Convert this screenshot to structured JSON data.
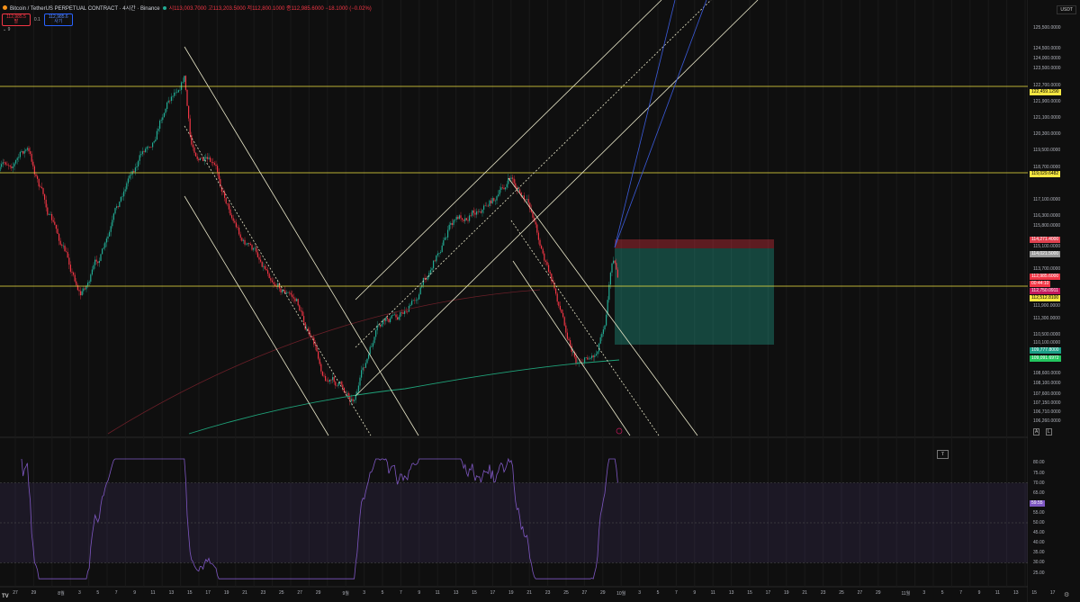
{
  "header": {
    "symbol": "Bitcoin / TetherUS PERPETUAL CONTRACT · 4시간 · Binance",
    "ohlc": "시113,003.7000 고113,203.5000 저112,800.1000 종112,985.6000 −18.1000 (−0.02%)",
    "sell_price": "112,985.5",
    "sell_label": "팔",
    "spread": "0.1",
    "buy_price": "112,985.6",
    "buy_label": "사기",
    "indicator_toggle": "⌄ 9"
  },
  "price_axis": {
    "currency": "USDT",
    "labels": [
      "125,500.0000",
      "124,500.0000",
      "124,000.0000",
      "123,500.0000",
      "122,700.0000",
      "121,900.0000",
      "121,100.0000",
      "120,300.0000",
      "119,500.0000",
      "118,700.0000",
      "117,100.0000",
      "116,300.0000",
      "115,800.0000",
      "115,100.0000",
      "113,700.0000",
      "111,900.0000",
      "111,300.0000",
      "110,500.0000",
      "110,100.0000",
      "108,600.0000",
      "108,100.0000",
      "107,600.0000",
      "107,150.0000",
      "106,710.0000",
      "106,260.0000"
    ],
    "tags": [
      {
        "text": "122,459.1290",
        "color": "#f5e642"
      },
      {
        "text": "119,029.6482",
        "color": "#f5e642"
      },
      {
        "text": "114,271.4000",
        "color": "#e0414f"
      },
      {
        "text": "114,021.5000",
        "color": "#9a9a9a"
      },
      {
        "text": "112,985.6000",
        "color": "#f23645"
      },
      {
        "text": "00:44:10",
        "color": "#f23645"
      },
      {
        "text": "112,750.0911",
        "color": "#c2185b"
      },
      {
        "text": "112,512.8100",
        "color": "#f5e642"
      },
      {
        "text": "109,777.8000",
        "color": "#1b9e86"
      },
      {
        "text": "109,091.6972",
        "color": "#22c55e"
      }
    ]
  },
  "rsi_axis": {
    "labels": [
      "80.00",
      "75.00",
      "70.00",
      "65.00",
      "55.00",
      "50.00",
      "45.00",
      "40.00",
      "35.00",
      "30.00",
      "25.00"
    ],
    "current": "59.55",
    "current_color": "#7e57c2"
  },
  "time_axis": {
    "labels": [
      {
        "t": "27",
        "d": "2025-07-27"
      },
      {
        "t": "29",
        "d": "2025-07-29"
      },
      {
        "t": "8월",
        "d": "2025-08-01"
      },
      {
        "t": "3",
        "d": "2025-08-03"
      },
      {
        "t": "5",
        "d": "2025-08-05"
      },
      {
        "t": "7",
        "d": "2025-08-07"
      },
      {
        "t": "9",
        "d": "2025-08-09"
      },
      {
        "t": "11",
        "d": "2025-08-11"
      },
      {
        "t": "13",
        "d": "2025-08-13"
      },
      {
        "t": "15",
        "d": "2025-08-15"
      },
      {
        "t": "17",
        "d": "2025-08-17"
      },
      {
        "t": "19",
        "d": "2025-08-19"
      },
      {
        "t": "21",
        "d": "2025-08-21"
      },
      {
        "t": "23",
        "d": "2025-08-23"
      },
      {
        "t": "25",
        "d": "2025-08-25"
      },
      {
        "t": "27",
        "d": "2025-08-27"
      },
      {
        "t": "29",
        "d": "2025-08-29"
      },
      {
        "t": "9월",
        "d": "2025-09-01"
      },
      {
        "t": "3",
        "d": "2025-09-03"
      },
      {
        "t": "5",
        "d": "2025-09-05"
      },
      {
        "t": "7",
        "d": "2025-09-07"
      },
      {
        "t": "9",
        "d": "2025-09-09"
      },
      {
        "t": "11",
        "d": "2025-09-11"
      },
      {
        "t": "13",
        "d": "2025-09-13"
      },
      {
        "t": "15",
        "d": "2025-09-15"
      },
      {
        "t": "17",
        "d": "2025-09-17"
      },
      {
        "t": "19",
        "d": "2025-09-19"
      },
      {
        "t": "21",
        "d": "2025-09-21"
      },
      {
        "t": "23",
        "d": "2025-09-23"
      },
      {
        "t": "25",
        "d": "2025-09-25"
      },
      {
        "t": "27",
        "d": "2025-09-27"
      },
      {
        "t": "29",
        "d": "2025-09-29"
      },
      {
        "t": "10월",
        "d": "2025-10-01"
      },
      {
        "t": "3",
        "d": "2025-10-03"
      },
      {
        "t": "5",
        "d": "2025-10-05"
      },
      {
        "t": "7",
        "d": "2025-10-07"
      },
      {
        "t": "9",
        "d": "2025-10-09"
      },
      {
        "t": "11",
        "d": "2025-10-11"
      },
      {
        "t": "13",
        "d": "2025-10-13"
      },
      {
        "t": "15",
        "d": "2025-10-15"
      },
      {
        "t": "17",
        "d": "2025-10-17"
      },
      {
        "t": "19",
        "d": "2025-10-19"
      },
      {
        "t": "21",
        "d": "2025-10-21"
      },
      {
        "t": "23",
        "d": "2025-10-23"
      },
      {
        "t": "25",
        "d": "2025-10-25"
      },
      {
        "t": "27",
        "d": "2025-10-27"
      },
      {
        "t": "29",
        "d": "2025-10-29"
      },
      {
        "t": "11월",
        "d": "2025-11-01"
      },
      {
        "t": "3",
        "d": "2025-11-03"
      },
      {
        "t": "5",
        "d": "2025-11-05"
      },
      {
        "t": "7",
        "d": "2025-11-07"
      },
      {
        "t": "9",
        "d": "2025-11-09"
      },
      {
        "t": "11",
        "d": "2025-11-11"
      },
      {
        "t": "13",
        "d": "2025-11-13"
      },
      {
        "t": "15",
        "d": "2025-11-15"
      },
      {
        "t": "17",
        "d": "2025-11-17"
      }
    ]
  },
  "colors": {
    "up": "#22ab94",
    "down": "#f23645",
    "level": "#f5e642",
    "channel": "#e8e6c8",
    "trend": "#3b5bdb",
    "ma_green": "#1fa37a",
    "rsi": "#7e57c2"
  },
  "scale_buttons": {
    "auto": "A",
    "log": "L"
  }
}
